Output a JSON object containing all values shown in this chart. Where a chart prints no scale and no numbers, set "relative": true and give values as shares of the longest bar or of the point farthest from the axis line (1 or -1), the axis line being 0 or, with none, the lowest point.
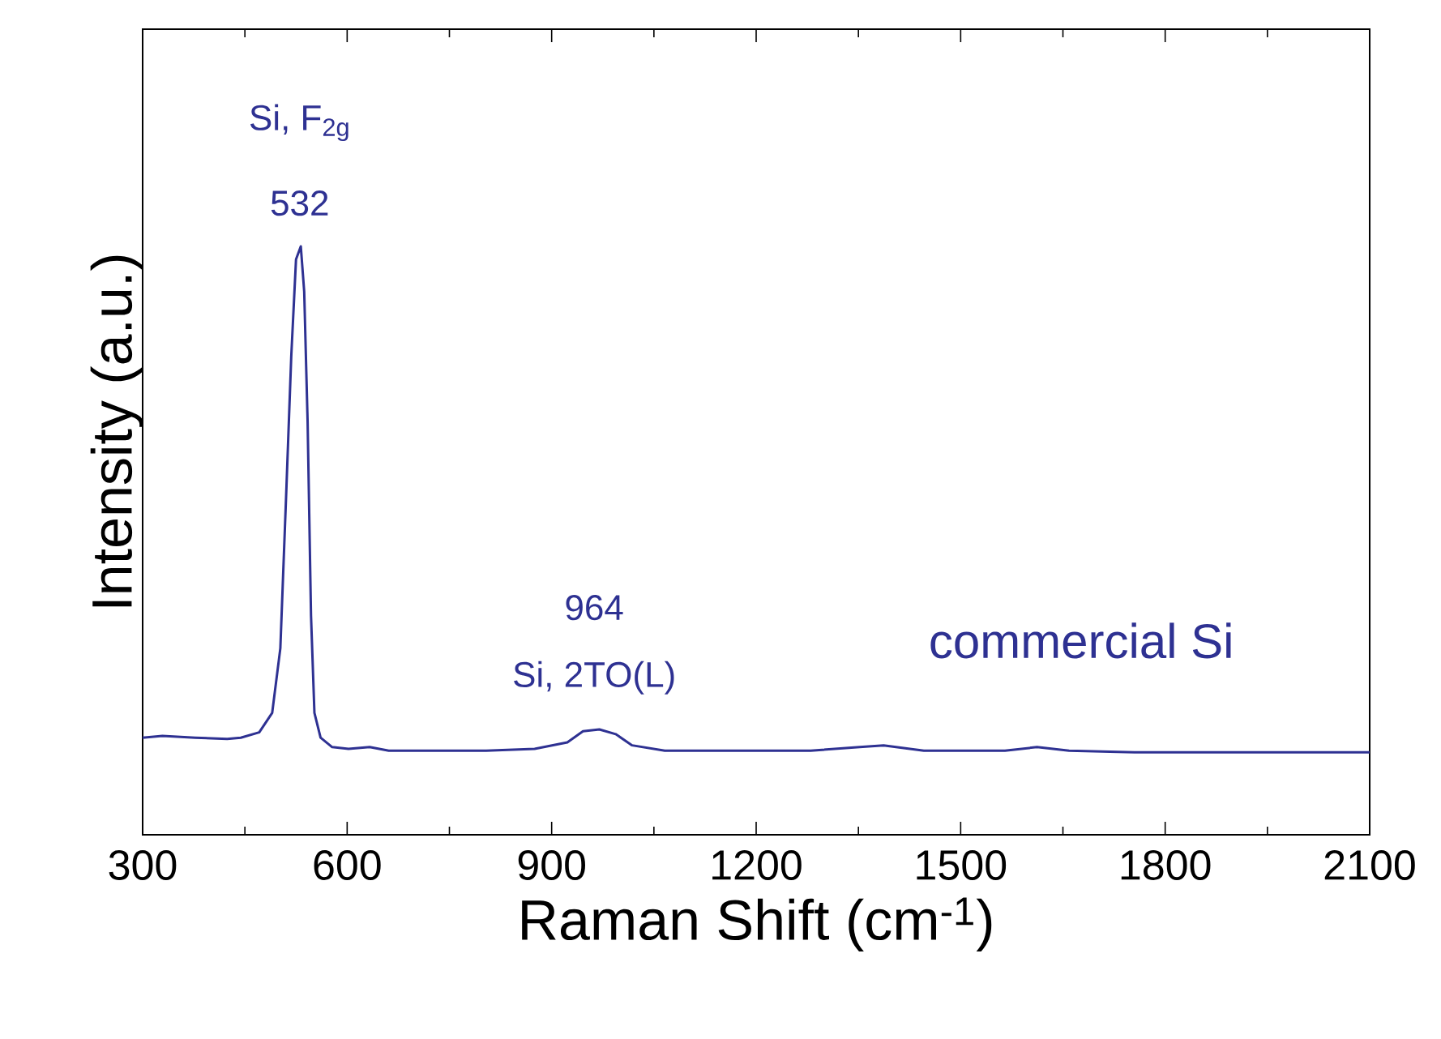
{
  "chart_data": {
    "type": "line",
    "relative": true,
    "xlabel": "Raman Shift (cm$^{-1}$)",
    "ylabel": "Intensity (a.u.)",
    "xlim": [
      300,
      2100
    ],
    "xticks": [
      300,
      600,
      900,
      1200,
      1500,
      1800,
      2100
    ],
    "tick_labels": "x",
    "grid": false,
    "series": [
      {
        "name": "commercial Si",
        "color": "#2e3192",
        "x": [
          300,
          329,
          377,
          424,
          444,
          471,
          490,
          502,
          511,
          518,
          525,
          532,
          537,
          542,
          547,
          552,
          561,
          578,
          602,
          633,
          661,
          733,
          804,
          875,
          923,
          946,
          970,
          994,
          1018,
          1066,
          1161,
          1280,
          1352,
          1387,
          1446,
          1565,
          1612,
          1659,
          1755,
          1897,
          2100
        ],
        "values": [
          0.165,
          0.168,
          0.165,
          0.163,
          0.165,
          0.174,
          0.207,
          0.317,
          0.592,
          0.813,
          0.978,
          1,
          0.923,
          0.702,
          0.372,
          0.207,
          0.165,
          0.149,
          0.146,
          0.149,
          0.143,
          0.143,
          0.143,
          0.146,
          0.157,
          0.176,
          0.179,
          0.171,
          0.152,
          0.143,
          0.143,
          0.143,
          0.149,
          0.152,
          0.143,
          0.143,
          0.149,
          0.143,
          0.14,
          0.14,
          0.14
        ]
      }
    ],
    "annotations": [
      "Si, F$_{2g}$",
      "532",
      "964",
      "Si, 2TO(L)"
    ]
  }
}
